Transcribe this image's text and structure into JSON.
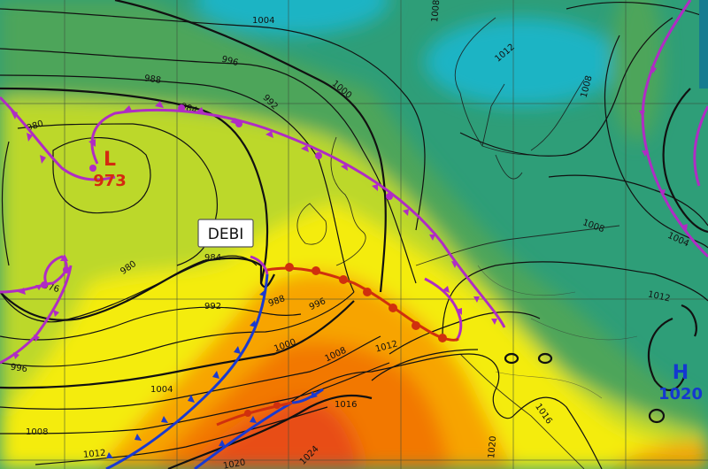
{
  "map": {
    "type": "surface pressure analysis with fronts",
    "colors": {
      "cyan": "#1db4c4",
      "teal": "#2e9e78",
      "green": "#4ea55a",
      "yellow_green": "#bcd82a",
      "yellow": "#f4ec10",
      "orange": "#f7a400",
      "dark_orange": "#f27800",
      "red_orange": "#e84e12",
      "occluded_front": "#b02cc4",
      "cold_front": "#1a3ad0",
      "warm_front": "#d0300e",
      "low_label": "#d42a10",
      "high_label": "#1438d0"
    },
    "storm_name": "DEBI",
    "low": {
      "letter": "L",
      "pressure": "973"
    },
    "high": {
      "letter": "H",
      "pressure": "1020"
    },
    "isobar_labels": [
      "1004",
      "996",
      "988",
      "984",
      "980",
      "992",
      "1000",
      "1008",
      "1012",
      "1008",
      "1008",
      "1004",
      "1012",
      "976",
      "984",
      "992",
      "988",
      "996",
      "1000",
      "1008",
      "1012",
      "1004",
      "1016",
      "1008",
      "1012",
      "1020",
      "1024",
      "1016",
      "1020",
      "996",
      "980"
    ]
  }
}
